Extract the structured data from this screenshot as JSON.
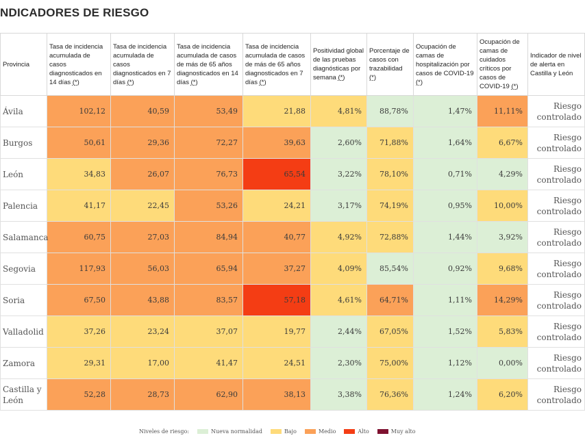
{
  "title": "NDICADORES DE RIESGO",
  "columns": [
    {
      "text": "Provincia",
      "ast": ""
    },
    {
      "text": "Tasa de incidencia acumulada de casos diagnosticados en 14 días ",
      "ast": "(*)"
    },
    {
      "text": "Tasa de incidencia acumulada de casos diagnosticados en 7 días ",
      "ast": "(*)"
    },
    {
      "text": "Tasa de incidencia acumulada de casos de más de 65 años diagnosticados en 14 días ",
      "ast": "(*)"
    },
    {
      "text": "Tasa de incidencia acumulada de casos de más de 65 años diagnosticados en 7 días ",
      "ast": "(*)"
    },
    {
      "text": "Positividad global de las pruebas diagnósticas por semana ",
      "ast": "(*)"
    },
    {
      "text": "Porcentaje de casos con trazabilidad ",
      "ast": "(*)"
    },
    {
      "text": "Ocupación de camas de hospitalización por casos de COVID-19 ",
      "ast": "(*)"
    },
    {
      "text": "Ocupación de camas de cuidados críticos por casos de COVID-19 ",
      "ast": "(*)"
    },
    {
      "text": "Indicador de nivel de alerta en Castilla y León",
      "ast": ""
    }
  ],
  "colors": {
    "nueva": "#dcefd6",
    "bajo": "#fedb7a",
    "medio": "#fba158",
    "alto": "#f43d14",
    "muy_alto": "#7e1130"
  },
  "rows": [
    {
      "province": "Ávila",
      "indicator": "Riesgo controlado",
      "cells": [
        {
          "v": "102,12",
          "l": "medio"
        },
        {
          "v": "40,59",
          "l": "medio"
        },
        {
          "v": "53,49",
          "l": "medio"
        },
        {
          "v": "21,88",
          "l": "bajo"
        },
        {
          "v": "4,81%",
          "l": "bajo"
        },
        {
          "v": "88,78%",
          "l": "nueva"
        },
        {
          "v": "1,47%",
          "l": "nueva"
        },
        {
          "v": "11,11%",
          "l": "medio"
        }
      ]
    },
    {
      "province": "Burgos",
      "indicator": "Riesgo controlado",
      "cells": [
        {
          "v": "50,61",
          "l": "medio"
        },
        {
          "v": "29,36",
          "l": "medio"
        },
        {
          "v": "72,27",
          "l": "medio"
        },
        {
          "v": "39,63",
          "l": "medio"
        },
        {
          "v": "2,60%",
          "l": "nueva"
        },
        {
          "v": "71,88%",
          "l": "bajo"
        },
        {
          "v": "1,64%",
          "l": "nueva"
        },
        {
          "v": "6,67%",
          "l": "bajo"
        }
      ]
    },
    {
      "province": "León",
      "indicator": "Riesgo controlado",
      "cells": [
        {
          "v": "34,83",
          "l": "bajo"
        },
        {
          "v": "26,07",
          "l": "medio"
        },
        {
          "v": "76,73",
          "l": "medio"
        },
        {
          "v": "65,54",
          "l": "alto"
        },
        {
          "v": "3,22%",
          "l": "nueva"
        },
        {
          "v": "78,10%",
          "l": "bajo"
        },
        {
          "v": "0,71%",
          "l": "nueva"
        },
        {
          "v": "4,29%",
          "l": "nueva"
        }
      ]
    },
    {
      "province": "Palencia",
      "indicator": "Riesgo controlado",
      "cells": [
        {
          "v": "41,17",
          "l": "bajo"
        },
        {
          "v": "22,45",
          "l": "bajo"
        },
        {
          "v": "53,26",
          "l": "medio"
        },
        {
          "v": "24,21",
          "l": "bajo"
        },
        {
          "v": "3,17%",
          "l": "nueva"
        },
        {
          "v": "74,19%",
          "l": "bajo"
        },
        {
          "v": "0,95%",
          "l": "nueva"
        },
        {
          "v": "10,00%",
          "l": "bajo"
        }
      ]
    },
    {
      "province": "Salamanca",
      "indicator": "Riesgo controlado",
      "cells": [
        {
          "v": "60,75",
          "l": "medio"
        },
        {
          "v": "27,03",
          "l": "medio"
        },
        {
          "v": "84,94",
          "l": "medio"
        },
        {
          "v": "40,77",
          "l": "medio"
        },
        {
          "v": "4,92%",
          "l": "bajo"
        },
        {
          "v": "72,88%",
          "l": "bajo"
        },
        {
          "v": "1,44%",
          "l": "nueva"
        },
        {
          "v": "3,92%",
          "l": "nueva"
        }
      ]
    },
    {
      "province": "Segovia",
      "indicator": "Riesgo controlado",
      "cells": [
        {
          "v": "117,93",
          "l": "medio"
        },
        {
          "v": "56,03",
          "l": "medio"
        },
        {
          "v": "65,94",
          "l": "medio"
        },
        {
          "v": "37,27",
          "l": "medio"
        },
        {
          "v": "4,09%",
          "l": "bajo"
        },
        {
          "v": "85,54%",
          "l": "nueva"
        },
        {
          "v": "0,92%",
          "l": "nueva"
        },
        {
          "v": "9,68%",
          "l": "bajo"
        }
      ]
    },
    {
      "province": "Soria",
      "indicator": "Riesgo controlado",
      "cells": [
        {
          "v": "67,50",
          "l": "medio"
        },
        {
          "v": "43,88",
          "l": "medio"
        },
        {
          "v": "83,57",
          "l": "medio"
        },
        {
          "v": "57,18",
          "l": "alto"
        },
        {
          "v": "4,61%",
          "l": "bajo"
        },
        {
          "v": "64,71%",
          "l": "medio"
        },
        {
          "v": "1,11%",
          "l": "nueva"
        },
        {
          "v": "14,29%",
          "l": "medio"
        }
      ]
    },
    {
      "province": "Valladolid",
      "indicator": "Riesgo controlado",
      "cells": [
        {
          "v": "37,26",
          "l": "bajo"
        },
        {
          "v": "23,24",
          "l": "bajo"
        },
        {
          "v": "37,07",
          "l": "bajo"
        },
        {
          "v": "19,77",
          "l": "bajo"
        },
        {
          "v": "2,44%",
          "l": "nueva"
        },
        {
          "v": "67,05%",
          "l": "bajo"
        },
        {
          "v": "1,52%",
          "l": "nueva"
        },
        {
          "v": "5,83%",
          "l": "bajo"
        }
      ]
    },
    {
      "province": "Zamora",
      "indicator": "Riesgo controlado",
      "cells": [
        {
          "v": "29,31",
          "l": "bajo"
        },
        {
          "v": "17,00",
          "l": "bajo"
        },
        {
          "v": "41,47",
          "l": "bajo"
        },
        {
          "v": "24,51",
          "l": "bajo"
        },
        {
          "v": "2,30%",
          "l": "nueva"
        },
        {
          "v": "75,00%",
          "l": "bajo"
        },
        {
          "v": "1,12%",
          "l": "nueva"
        },
        {
          "v": "0,00%",
          "l": "nueva"
        }
      ]
    },
    {
      "province": "Castilla y León",
      "indicator": "Riesgo controlado",
      "cells": [
        {
          "v": "52,28",
          "l": "medio"
        },
        {
          "v": "28,73",
          "l": "medio"
        },
        {
          "v": "62,90",
          "l": "medio"
        },
        {
          "v": "38,13",
          "l": "medio"
        },
        {
          "v": "3,38%",
          "l": "nueva"
        },
        {
          "v": "76,36%",
          "l": "bajo"
        },
        {
          "v": "1,24%",
          "l": "nueva"
        },
        {
          "v": "6,20%",
          "l": "bajo"
        }
      ]
    }
  ],
  "legend": {
    "label": "Niveles de riesgo:",
    "items": [
      {
        "key": "nueva",
        "label": "Nueva normalidad"
      },
      {
        "key": "bajo",
        "label": "Bajo"
      },
      {
        "key": "medio",
        "label": "Medio"
      },
      {
        "key": "alto",
        "label": "Alto"
      },
      {
        "key": "muy_alto",
        "label": "Muy alto"
      }
    ]
  }
}
